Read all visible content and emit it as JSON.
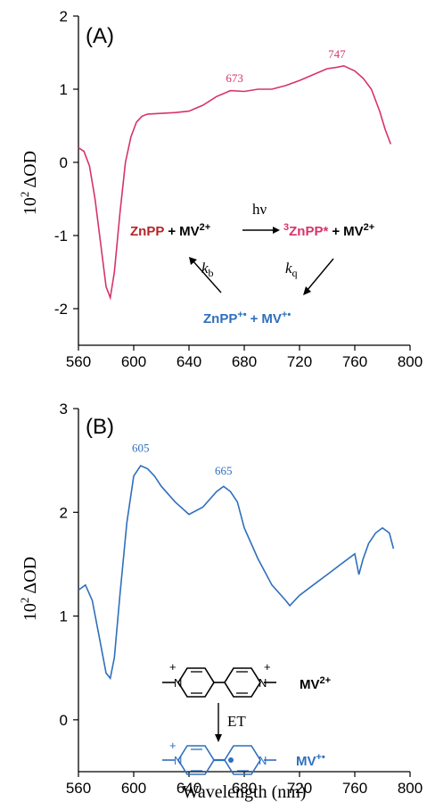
{
  "chart_data": [
    {
      "panel": "(A)",
      "type": "line",
      "color": "#d6336c",
      "ylabel_base": "10",
      "ylabel_exp": "2",
      "ylabel_rest": " ΔOD",
      "xlim": [
        560,
        800
      ],
      "ylim": [
        -2.5,
        2
      ],
      "xticks": [
        560,
        600,
        640,
        680,
        720,
        760,
        800
      ],
      "yticks": [
        -2,
        -1,
        0,
        1,
        2
      ],
      "series": [
        {
          "x": [
            560,
            564,
            568,
            572,
            576,
            580,
            583,
            586,
            590,
            594,
            598,
            602,
            606,
            610,
            620,
            630,
            640,
            650,
            660,
            670,
            680,
            690,
            700,
            710,
            720,
            730,
            740,
            747,
            752,
            760,
            766,
            772,
            778,
            782,
            786
          ],
          "y": [
            0.2,
            0.15,
            -0.05,
            -0.5,
            -1.1,
            -1.7,
            -1.85,
            -1.5,
            -0.7,
            0.0,
            0.35,
            0.55,
            0.63,
            0.66,
            0.67,
            0.68,
            0.7,
            0.78,
            0.9,
            0.98,
            0.97,
            1.0,
            1.0,
            1.05,
            1.12,
            1.2,
            1.28,
            1.3,
            1.32,
            1.25,
            1.15,
            1.0,
            0.7,
            0.45,
            0.25
          ]
        }
      ],
      "annotations": [
        {
          "text": "673",
          "x": 673,
          "y": 1.05
        },
        {
          "text": "747",
          "x": 747,
          "y": 1.38
        }
      ]
    },
    {
      "panel": "(B)",
      "type": "line",
      "color": "#2f6fbd",
      "ylabel_base": "10",
      "ylabel_exp": "2",
      "ylabel_rest": " ΔOD",
      "xlabel": "Wavelength (nm)",
      "xlim": [
        560,
        800
      ],
      "ylim": [
        -0.5,
        3
      ],
      "xticks": [
        560,
        600,
        640,
        680,
        720,
        760,
        800
      ],
      "yticks": [
        0,
        1,
        2,
        3
      ],
      "series": [
        {
          "x": [
            560,
            565,
            570,
            575,
            580,
            583,
            586,
            590,
            595,
            600,
            605,
            610,
            615,
            620,
            630,
            640,
            650,
            660,
            665,
            670,
            675,
            680,
            690,
            700,
            710,
            713,
            720,
            730,
            740,
            750,
            760,
            763,
            766,
            770,
            775,
            780,
            785,
            788
          ],
          "y": [
            1.25,
            1.3,
            1.15,
            0.8,
            0.45,
            0.4,
            0.6,
            1.2,
            1.9,
            2.35,
            2.45,
            2.42,
            2.35,
            2.25,
            2.1,
            1.98,
            2.05,
            2.2,
            2.25,
            2.2,
            2.1,
            1.85,
            1.55,
            1.3,
            1.15,
            1.1,
            1.2,
            1.3,
            1.4,
            1.5,
            1.6,
            1.4,
            1.55,
            1.7,
            1.8,
            1.85,
            1.8,
            1.65
          ]
        }
      ],
      "annotations": [
        {
          "text": "605",
          "x": 605,
          "y": 2.55
        },
        {
          "text": "665",
          "x": 665,
          "y": 2.33
        }
      ]
    }
  ],
  "scheme_a": {
    "znpp": "ZnPP",
    "plus1": "+",
    "mv": "MV",
    "mv_charge": "2+",
    "hv": "hν",
    "triplet_sup": "3",
    "triplet": "ZnPP*",
    "plus2": "+",
    "mv2": "MV",
    "mv2_charge": "2+",
    "kb": "k",
    "kb_sub": "b",
    "kq": "k",
    "kq_sub": "q",
    "cation": "ZnPP",
    "cation_charge": "+•",
    "plus3": "+",
    "mv_rad": "MV",
    "mv_rad_charge": "+•",
    "color_red": "#b5252a",
    "color_pink": "#d6336c",
    "color_blue": "#2f6fbd"
  },
  "scheme_b": {
    "mv2_label": "MV",
    "mv2_charge": "2+",
    "et": "ET",
    "mv_rad_label": "MV",
    "mv_rad_charge": "+•",
    "n_left": "N",
    "n_right": "N",
    "plus": "+"
  }
}
